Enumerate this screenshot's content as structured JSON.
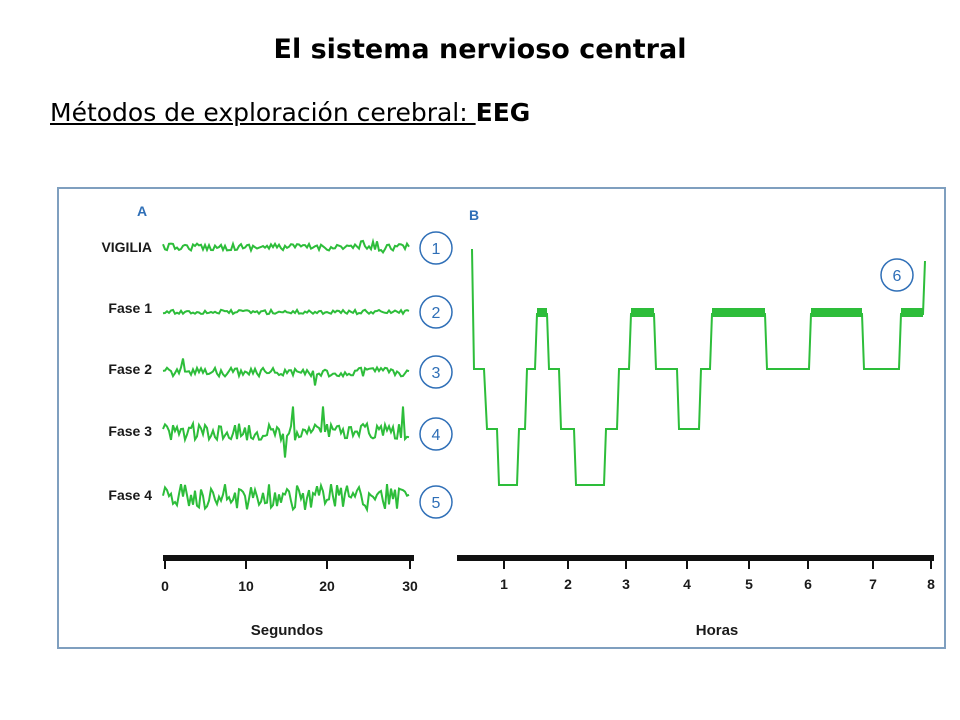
{
  "slide": {
    "title": "El sistema nervioso central",
    "subtitle_prefix": "Métodos de exploración cerebral: ",
    "subtitle_bold": "EEG"
  },
  "figure": {
    "panel_a": {
      "letter": "A",
      "rows": [
        {
          "label": "VIGILIA",
          "number": "1"
        },
        {
          "label": "Fase 1",
          "number": "2"
        },
        {
          "label": "Fase 2",
          "number": "3"
        },
        {
          "label": "Fase 3",
          "number": "4"
        },
        {
          "label": "Fase 4",
          "number": "5"
        }
      ],
      "axis_ticks": [
        "0",
        "10",
        "20",
        "30"
      ],
      "axis_label": "Segundos"
    },
    "panel_b": {
      "letter": "B",
      "marker_number": "6",
      "axis_ticks": [
        "1",
        "2",
        "3",
        "4",
        "5",
        "6",
        "7",
        "8"
      ],
      "axis_label": "Horas"
    },
    "colors": {
      "trace": "#2dbd3a",
      "circle": "#2f6fb7",
      "border": "#7f9fbf",
      "axis": "#111111"
    }
  }
}
